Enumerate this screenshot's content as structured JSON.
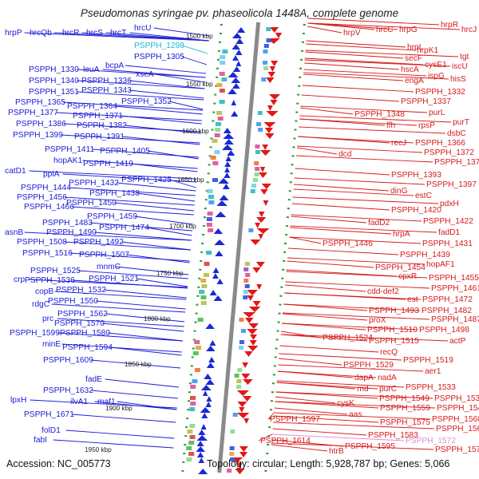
{
  "title": "Pseudomonas syringae pv. phaseolicola 1448A, complete genome",
  "accession": "Accession: NC_005773",
  "summary": "Topology: circular; Length: 5,928,787 bp; Genes: 5,066",
  "colors": {
    "left_genes": "#1a1ad6",
    "right_genes": "#d61a1a",
    "cyan_label": "#1ab8d6",
    "pink_label": "#e38ccf",
    "backbone": "#8a8a8a",
    "tick_green": "#2e9a2e"
  },
  "scale_labels": [
    "1500 kbp",
    "1550 kbp",
    "1600 kbp",
    "1650 kbp",
    "1700 kbp",
    "1750 kbp",
    "1800 kbp",
    "1850 kbp",
    "1900 kbp",
    "1950 kbp"
  ],
  "left_labels": [
    "hrpP",
    "hrcQb",
    "hrcR",
    "hrcS",
    "hrcT",
    "hrcU",
    "PSPPH_1298",
    "PSPPH_1305",
    "bcpA",
    "PSPPH_1330",
    "leuA",
    "xseA",
    "PSPPH_1340",
    "PSPPH_1336",
    "PSPPH_1351",
    "PSPPH_1343",
    "PSPPH_1352",
    "PSPPH_1365",
    "PSPPH_1364",
    "PSPPH_1377",
    "PSPPH_1371",
    "PSPPH_1386",
    "PSPPH_1382",
    "PSPPH_1399",
    "PSPPH_1391",
    "PSPPH_1411",
    "PSPPH_1405",
    "hopAK1",
    "PSPPH_1419",
    "catD1",
    "ppiA",
    "PSPPH_1425",
    "PSPPH_1444",
    "PSPPH_1432",
    "PSPPH_1438",
    "PSPPH_1456",
    "PSPPH_1450",
    "PSPPH_1466",
    "PSPPH_1459",
    "PSPPH_1483",
    "PSPPH_1474",
    "asnB",
    "PSPPH_1490",
    "PSPPH_1508",
    "PSPPH_1492",
    "PSPPH_1516",
    "PSPPH_1507",
    "mnmC",
    "PSPPH_1525",
    "crp",
    "PSPPH_1536",
    "PSPPH_1521",
    "copB",
    "PSPPH_1532",
    "rdgC",
    "PSPPH_1550",
    "PSPPH_1562",
    "prc",
    "PSPPH_1570",
    "PSPPH_1599",
    "PSPPH_1580",
    "minE",
    "PSPPH_1594",
    "PSPPH_1609",
    "fadE",
    "PSPPH_1632",
    "lpxH",
    "ilvA1",
    "maf1",
    "PSPPH_1671",
    "folD1",
    "fabI"
  ],
  "right_labels": [
    "hrpR",
    "hrpV",
    "hrcC",
    "hrpG",
    "hrcJ",
    "hrpL",
    "hrpK1",
    "secF",
    "tgt",
    "cysE1",
    "iscU",
    "hscA",
    "ispG",
    "hisS",
    "engA",
    "PSPPH_1332",
    "PSPPH_1337",
    "purL",
    "PSPPH_1348",
    "purT",
    "ffh",
    "rpsP",
    "dsbC",
    "recJ",
    "PSPPH_1366",
    "dcd",
    "PSPPH_1372",
    "PSPPH_1379",
    "PSPPH_1393",
    "PSPPH_1397",
    "dinG",
    "estC",
    "pdxH",
    "PSPPH_1420",
    "fadD2",
    "PSPPH_1422",
    "hrpA",
    "fadD1",
    "PSPPH_1446",
    "PSPPH_1431",
    "PSPPH_1439",
    "hopAF1",
    "PSPPH_1454",
    "cpxR",
    "PSPPH_1455",
    "cdd-def2",
    "PSPPH_1461",
    "est",
    "PSPPH_1472",
    "PSPPH_1493",
    "PSPPH_1482",
    "proX",
    "PSPPH_1487",
    "PSPPH_1510",
    "PSPPH_1498",
    "PSPPH_1524",
    "PSPPH_1515",
    "actP",
    "recQ",
    "PSPPH_1519",
    "PSPPH_1529",
    "aer1",
    "dapA",
    "nadA",
    "rnd",
    "purC",
    "PSPPH_1533",
    "PSPPH_1549",
    "PSPPH_1534",
    "cysK",
    "PSPPH_1559",
    "PSPPH_1545",
    "aas",
    "PSPPH_1597",
    "PSPPH_1575",
    "PSPPH_1560",
    "PSPPH_1564",
    "PSPPH_1583",
    "PSPPH_1572",
    "PSPPH_1614",
    "PSPPH_1595",
    "htrB",
    "PSPPH_1574"
  ]
}
